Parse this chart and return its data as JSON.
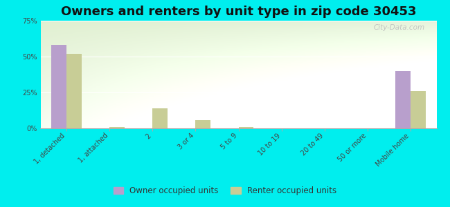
{
  "title": "Owners and renters by unit type in zip code 30453",
  "categories": [
    "1, detached",
    "1, attached",
    "2",
    "3 or 4",
    "5 to 9",
    "10 to 19",
    "20 to 49",
    "50 or more",
    "Mobile home"
  ],
  "owner_values": [
    58,
    0,
    0,
    0,
    0,
    0,
    0,
    0,
    40
  ],
  "renter_values": [
    52,
    1,
    14,
    6,
    1,
    0,
    0,
    0,
    26
  ],
  "owner_color": "#b89fcc",
  "renter_color": "#c8cd96",
  "background_color": "#00eeee",
  "ylim": [
    0,
    75
  ],
  "yticks": [
    0,
    25,
    50,
    75
  ],
  "ytick_labels": [
    "0%",
    "25%",
    "50%",
    "75%"
  ],
  "bar_width": 0.35,
  "legend_owner": "Owner occupied units",
  "legend_renter": "Renter occupied units",
  "title_fontsize": 13,
  "tick_fontsize": 7,
  "watermark": "City-Data.com"
}
